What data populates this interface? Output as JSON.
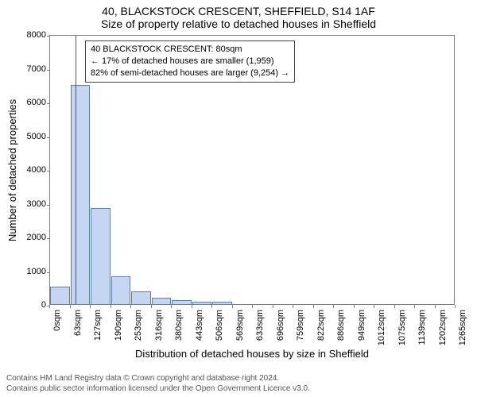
{
  "title": "40, BLACKSTOCK CRESCENT, SHEFFIELD, S14 1AF",
  "subtitle": "Size of property relative to detached houses in Sheffield",
  "y_label": "Number of detached properties",
  "x_label": "Distribution of detached houses by size in Sheffield",
  "chart": {
    "type": "histogram",
    "background_color": "#ffffff",
    "border_color": "#7f7f7f",
    "bar_fill": "#c4d6f2",
    "bar_stroke": "#5b7fb5",
    "marker_color": "#d62020",
    "ylim": [
      0,
      8000
    ],
    "ytick_step": 1000,
    "yticks": [
      0,
      1000,
      2000,
      3000,
      4000,
      5000,
      6000,
      7000,
      8000
    ],
    "xticks": [
      "0sqm",
      "63sqm",
      "127sqm",
      "190sqm",
      "253sqm",
      "316sqm",
      "380sqm",
      "443sqm",
      "506sqm",
      "569sqm",
      "633sqm",
      "696sqm",
      "759sqm",
      "822sqm",
      "886sqm",
      "949sqm",
      "1012sqm",
      "1075sqm",
      "1139sqm",
      "1202sqm",
      "1265sqm"
    ],
    "bins": 20,
    "values": [
      520,
      6500,
      2850,
      820,
      380,
      200,
      120,
      80,
      60,
      0,
      0,
      0,
      0,
      0,
      0,
      0,
      0,
      0,
      0,
      0
    ],
    "marker_x_value": 80,
    "x_max": 1265
  },
  "annotation": {
    "line1": "40 BLACKSTOCK CRESCENT: 80sqm",
    "line2": "← 17% of detached houses are smaller (1,959)",
    "line3": "82% of semi-detached houses are larger (9,254) →"
  },
  "footer": {
    "line1": "Contains HM Land Registry data © Crown copyright and database right 2024.",
    "line2": "Contains public sector information licensed under the Open Government Licence v3.0."
  },
  "fonts": {
    "title_size": 14,
    "axis_label_size": 13,
    "tick_size": 11,
    "annotation_size": 11,
    "footer_size": 10
  }
}
